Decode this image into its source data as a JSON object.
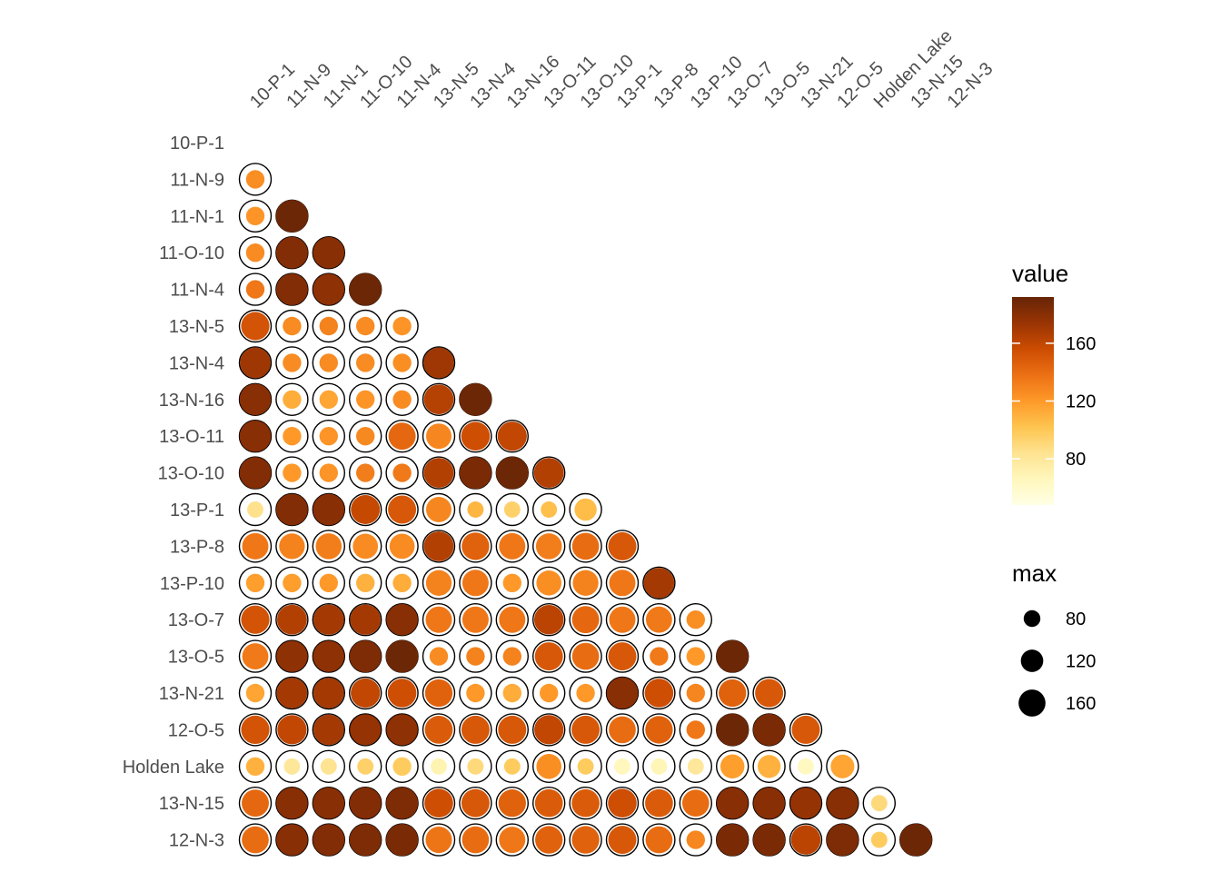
{
  "chart_data": {
    "type": "heatmap",
    "title": "",
    "xlabel": "",
    "ylabel": "",
    "labels": [
      "10-P-1",
      "11-N-9",
      "11-N-1",
      "11-O-10",
      "11-N-4",
      "13-N-5",
      "13-N-4",
      "13-N-16",
      "13-O-11",
      "13-O-10",
      "13-P-1",
      "13-P-8",
      "13-P-10",
      "13-O-7",
      "13-O-5",
      "13-N-21",
      "12-O-5",
      "Holden Lake",
      "13-N-15",
      "12-N-3"
    ],
    "value_rows": [
      [],
      [
        125
      ],
      [
        122,
        190
      ],
      [
        126,
        182,
        180
      ],
      [
        135,
        182,
        178,
        190
      ],
      [
        152,
        126,
        130,
        126,
        122
      ],
      [
        172,
        126,
        126,
        126,
        125,
        172
      ],
      [
        180,
        112,
        115,
        122,
        126,
        164,
        190
      ],
      [
        180,
        120,
        122,
        127,
        142,
        128,
        155,
        160
      ],
      [
        182,
        120,
        122,
        132,
        134,
        165,
        185,
        190,
        165
      ],
      [
        85,
        182,
        180,
        158,
        150,
        128,
        108,
        95,
        104,
        105
      ],
      [
        135,
        130,
        132,
        126,
        126,
        165,
        145,
        135,
        132,
        140,
        150
      ],
      [
        118,
        118,
        120,
        110,
        112,
        130,
        135,
        120,
        125,
        130,
        135,
        170
      ],
      [
        152,
        165,
        170,
        170,
        180,
        135,
        135,
        135,
        162,
        142,
        135,
        134,
        125
      ],
      [
        134,
        178,
        178,
        184,
        190,
        126,
        130,
        130,
        150,
        140,
        150,
        134,
        120,
        190
      ],
      [
        115,
        170,
        170,
        160,
        155,
        145,
        120,
        112,
        120,
        120,
        180,
        155,
        128,
        145,
        150
      ],
      [
        152,
        160,
        170,
        175,
        178,
        148,
        150,
        150,
        160,
        150,
        140,
        145,
        135,
        190,
        185,
        150
      ],
      [
        110,
        80,
        84,
        95,
        98,
        70,
        90,
        98,
        125,
        98,
        65,
        68,
        80,
        118,
        110,
        64,
        115
      ],
      [
        142,
        180,
        180,
        182,
        184,
        155,
        150,
        145,
        148,
        148,
        155,
        148,
        140,
        180,
        180,
        175,
        180,
        90
      ],
      [
        140,
        180,
        182,
        184,
        185,
        136,
        140,
        135,
        145,
        145,
        150,
        140,
        128,
        185,
        185,
        162,
        184,
        98,
        190
      ]
    ],
    "max_rows": [
      [],
      [
        82
      ],
      [
        82,
        190
      ],
      [
        82,
        182,
        180
      ],
      [
        82,
        182,
        180,
        190
      ],
      [
        152,
        82,
        82,
        82,
        82
      ],
      [
        172,
        82,
        82,
        82,
        82,
        172
      ],
      [
        180,
        82,
        82,
        82,
        82,
        164,
        190
      ],
      [
        180,
        82,
        82,
        82,
        142,
        128,
        155,
        160
      ],
      [
        182,
        82,
        82,
        82,
        82,
        165,
        185,
        190,
        165
      ],
      [
        70,
        182,
        180,
        158,
        150,
        128,
        70,
        70,
        70,
        105
      ],
      [
        135,
        130,
        132,
        126,
        126,
        165,
        145,
        135,
        132,
        140,
        150
      ],
      [
        82,
        82,
        82,
        82,
        82,
        130,
        135,
        82,
        125,
        130,
        135,
        170
      ],
      [
        152,
        165,
        170,
        170,
        180,
        135,
        135,
        135,
        162,
        142,
        135,
        134,
        82
      ],
      [
        134,
        178,
        178,
        184,
        190,
        82,
        82,
        82,
        150,
        140,
        150,
        82,
        82,
        190
      ],
      [
        82,
        170,
        170,
        160,
        155,
        145,
        82,
        82,
        82,
        82,
        180,
        155,
        82,
        145,
        150
      ],
      [
        152,
        160,
        170,
        175,
        178,
        148,
        150,
        150,
        160,
        150,
        140,
        145,
        82,
        190,
        185,
        150
      ],
      [
        82,
        70,
        70,
        70,
        82,
        70,
        70,
        70,
        125,
        70,
        70,
        70,
        70,
        118,
        110,
        70,
        115
      ],
      [
        142,
        180,
        180,
        182,
        184,
        155,
        150,
        145,
        148,
        148,
        155,
        148,
        140,
        180,
        180,
        175,
        180,
        70
      ],
      [
        140,
        180,
        182,
        184,
        185,
        136,
        140,
        135,
        145,
        145,
        150,
        140,
        82,
        185,
        185,
        162,
        184,
        70,
        190
      ]
    ],
    "color_scale": {
      "title": "value",
      "ticks": [
        80,
        120,
        160
      ],
      "range": [
        48,
        192
      ],
      "colors": [
        "#FFFFE5",
        "#FFF7BC",
        "#FEE391",
        "#FEC44F",
        "#FE9929",
        "#EC7014",
        "#CC4C02",
        "#993404",
        "#662506"
      ]
    },
    "size_scale": {
      "title": "max",
      "ticks": [
        80,
        120,
        160
      ],
      "range": [
        48,
        192
      ]
    }
  }
}
